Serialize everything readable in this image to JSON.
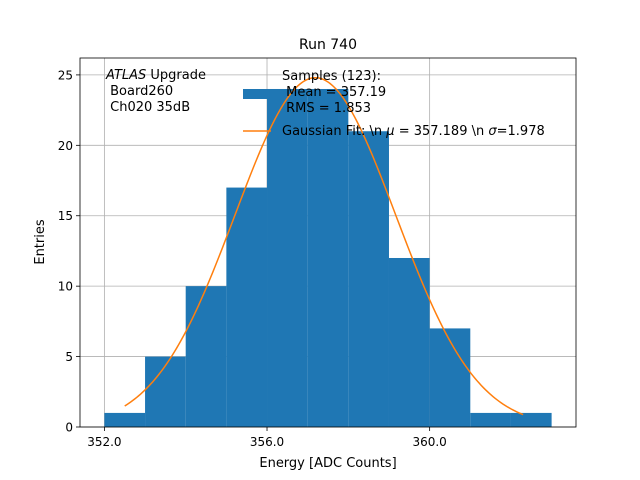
{
  "chart_data": {
    "type": "bar",
    "title": "Run 740",
    "xlabel": "Energy [ADC Counts]",
    "ylabel": "Entries",
    "xlim": [
      351.4,
      363.6
    ],
    "ylim": [
      0,
      26.2
    ],
    "grid": true,
    "x_tick_values": [
      352,
      356,
      360
    ],
    "x_tick_labels": [
      "352.0",
      "356.0",
      "360.0"
    ],
    "y_tick_values": [
      0,
      5,
      10,
      15,
      20,
      25
    ],
    "y_tick_labels": [
      "0",
      "5",
      "10",
      "15",
      "20",
      "25"
    ],
    "histogram": {
      "name_lines": [
        "Samples (123):",
        " Mean = 357.19",
        " RMS = 1.853"
      ],
      "color": "#1f77b4",
      "bin_edges": [
        352,
        353,
        354,
        355,
        356,
        357,
        358,
        359,
        360,
        361,
        362,
        363
      ],
      "counts": [
        1,
        5,
        10,
        17,
        24,
        24,
        21,
        12,
        7,
        1,
        1
      ]
    },
    "fit": {
      "name": "Gaussian Fit: \\n $\\mu$ = 357.189 \\n $\\sigma$=1.978",
      "name_parts": {
        "prefix": "Gaussian Fit: \\n ",
        "mu": "μ",
        "mid": " = 357.189 \\n ",
        "sigma": "σ",
        "suffix": "=1.978"
      },
      "color": "#ff7f0e",
      "mu": 357.189,
      "sigma": 1.978,
      "amplitude": 24.8,
      "x_range": [
        352.5,
        362.3
      ]
    },
    "annotation": {
      "italic": "ATLAS",
      "rest": " Upgrade",
      "lines": [
        " Board260",
        " Ch020 35dB"
      ]
    },
    "legend_position": "top-center"
  }
}
